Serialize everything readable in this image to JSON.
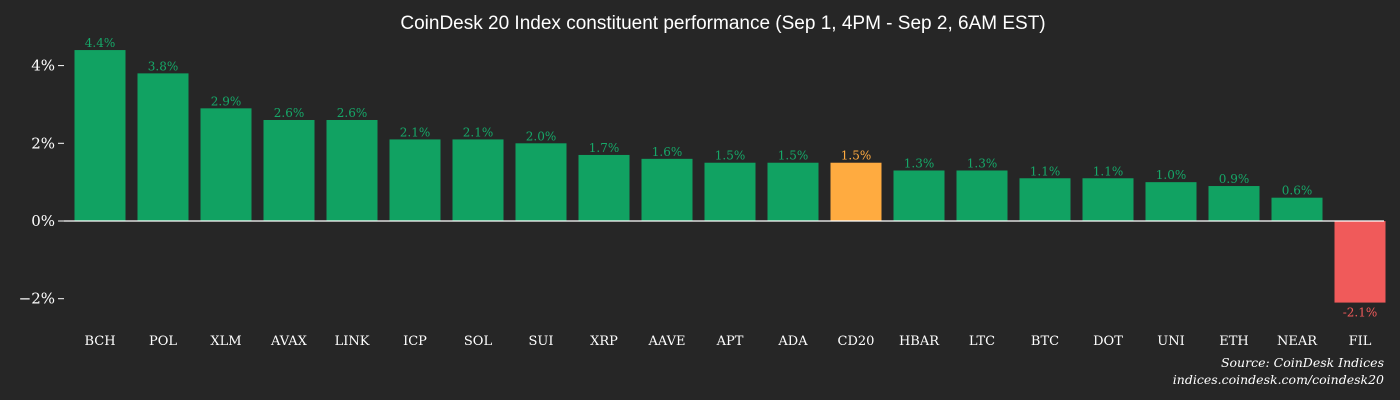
{
  "chart_data": {
    "type": "bar",
    "title": "CoinDesk 20 Index constituent performance (Sep 1, 4PM - Sep 2, 6AM EST)",
    "xlabel": "",
    "ylabel": "",
    "categories": [
      "BCH",
      "POL",
      "XLM",
      "AVAX",
      "LINK",
      "ICP",
      "SOL",
      "SUI",
      "XRP",
      "AAVE",
      "APT",
      "ADA",
      "CD20",
      "HBAR",
      "LTC",
      "BTC",
      "DOT",
      "UNI",
      "ETH",
      "NEAR",
      "FIL"
    ],
    "values": [
      4.4,
      3.8,
      2.9,
      2.6,
      2.6,
      2.1,
      2.1,
      2.0,
      1.7,
      1.6,
      1.5,
      1.5,
      1.5,
      1.3,
      1.3,
      1.1,
      1.1,
      1.0,
      0.9,
      0.6,
      -2.1
    ],
    "data_labels": [
      "4.4%",
      "3.8%",
      "2.9%",
      "2.6%",
      "2.6%",
      "2.1%",
      "2.1%",
      "2.0%",
      "1.7%",
      "1.6%",
      "1.5%",
      "1.5%",
      "1.5%",
      "1.3%",
      "1.3%",
      "1.1%",
      "1.1%",
      "1.0%",
      "0.9%",
      "0.6%",
      "-2.1%"
    ],
    "highlight_category": "CD20",
    "yticks": [
      4,
      2,
      0,
      -2
    ],
    "ytick_labels": [
      "4%",
      "2%",
      "0%",
      "−2%"
    ],
    "ylim": [
      -2.3,
      4.5
    ],
    "grid": false,
    "colors": {
      "positive": "#11a262",
      "negative": "#f05a5a",
      "highlight": "#ffab40",
      "positive_label": "#16a768",
      "negative_label": "#f05a5a",
      "highlight_label": "#ffab40",
      "background": "#262626",
      "text": "#ffffff"
    }
  },
  "source_line1": "Source: CoinDesk Indices",
  "source_line2": "indices.coindesk.com/coindesk20"
}
